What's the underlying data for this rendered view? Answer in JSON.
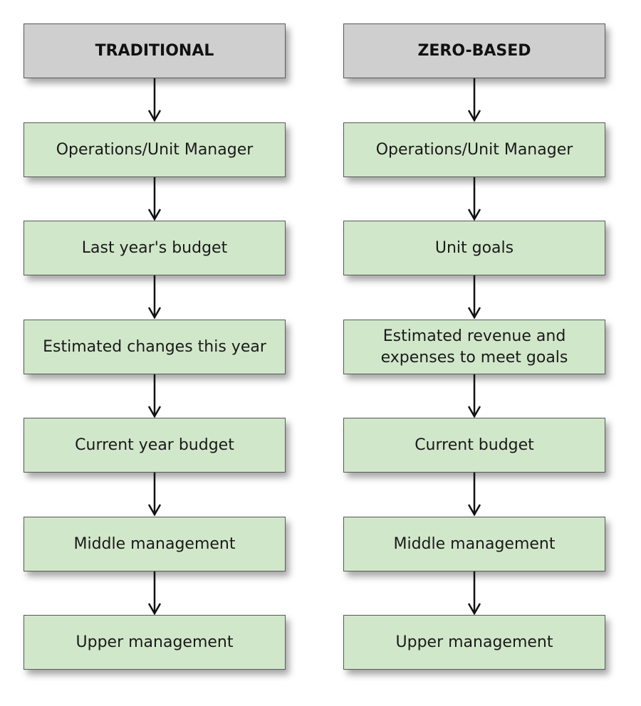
{
  "colors": {
    "header_fill": "#cfcfcf",
    "step_fill": "#d1e7ca",
    "border": "#5a5a5a",
    "arrow": "#111111"
  },
  "columns": [
    {
      "header": "TRADITIONAL",
      "steps": [
        {
          "lines": [
            "Operations/Unit Manager"
          ]
        },
        {
          "lines": [
            "Last year's budget"
          ]
        },
        {
          "lines": [
            "Estimated changes this year"
          ]
        },
        {
          "lines": [
            "Current year budget"
          ]
        },
        {
          "lines": [
            "Middle management"
          ]
        },
        {
          "lines": [
            "Upper management"
          ]
        }
      ]
    },
    {
      "header": "ZERO-BASED",
      "steps": [
        {
          "lines": [
            "Operations/Unit Manager"
          ]
        },
        {
          "lines": [
            "Unit goals"
          ]
        },
        {
          "lines": [
            "Estimated revenue and",
            "expenses to meet goals"
          ]
        },
        {
          "lines": [
            "Current budget"
          ]
        },
        {
          "lines": [
            "Middle management"
          ]
        },
        {
          "lines": [
            "Upper management"
          ]
        }
      ]
    }
  ]
}
